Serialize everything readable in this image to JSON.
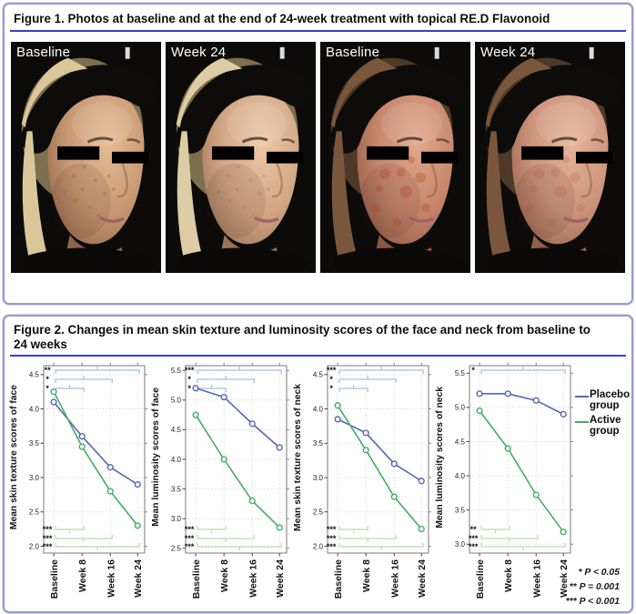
{
  "figure1": {
    "title": "Figure 1. Photos at baseline and at the end of 24-week treatment with topical RE.D Flavonoid",
    "photos": [
      {
        "label": "Baseline",
        "patient": "1",
        "skin_light": "#e6bd97",
        "skin_mid": "#c89873",
        "skin_shadow": "#8f6548",
        "hair": "#d9c79a",
        "hair_dark": "#7d6e4e",
        "blotch": "freckle"
      },
      {
        "label": "Week 24",
        "patient": "1",
        "skin_light": "#edc9a8",
        "skin_mid": "#d2a685",
        "skin_shadow": "#9a7356",
        "hair": "#ddcda4",
        "hair_dark": "#7d6e4e",
        "blotch": "freckle-light"
      },
      {
        "label": "Baseline",
        "patient": "2",
        "skin_light": "#e2a98c",
        "skin_mid": "#c5856b",
        "skin_shadow": "#8d5743",
        "hair": "#7a573c",
        "hair_dark": "#4e3827",
        "blotch": "red"
      },
      {
        "label": "Week 24",
        "patient": "2",
        "skin_light": "#e7b599",
        "skin_mid": "#cc947b",
        "skin_shadow": "#935f4b",
        "hair": "#7a573c",
        "hair_dark": "#4e3827",
        "blotch": "red-light"
      }
    ]
  },
  "figure2": {
    "title": "Figure 2. Changes in mean skin texture and luminosity scores of the face and neck from baseline to 24 weeks",
    "underline_color": "#3b3bd6",
    "legend": {
      "items": [
        {
          "label": "Placebo group",
          "color": "#5568b0"
        },
        {
          "label": "Active group",
          "color": "#44ad63"
        }
      ]
    },
    "pvalue_notes": [
      "* P < 0.05",
      "** P = 0.001",
      "*** P < 0.001"
    ],
    "sig_colors": {
      "top_bracket": "#a2c0de",
      "bottom_bracket": "#b7dfa9"
    }
  },
  "chart_data": [
    {
      "type": "line",
      "title": "",
      "xlabel": "",
      "ylabel": "Mean skin texture scores of face",
      "categories": [
        "Baseline",
        "Week 8",
        "Week 16",
        "Week 24"
      ],
      "yticks": [
        2.0,
        2.5,
        3.0,
        3.5,
        4.0,
        4.5
      ],
      "ylim": [
        1.9,
        4.63
      ],
      "grid": true,
      "legend_position": "right-of-last-chart",
      "series": [
        {
          "name": "Placebo group",
          "color": "#5568b0",
          "values": [
            4.1,
            3.6,
            3.15,
            2.9
          ]
        },
        {
          "name": "Active group",
          "color": "#44ad63",
          "values": [
            4.25,
            3.45,
            2.8,
            2.3
          ]
        }
      ],
      "sig_top": [
        {
          "from": 0,
          "to": 3,
          "label": "**"
        },
        {
          "from": 0,
          "to": 2,
          "label": "*"
        },
        {
          "from": 0,
          "to": 1,
          "label": "*"
        }
      ],
      "sig_bottom": [
        {
          "from": 0,
          "to": 1,
          "label": "***"
        },
        {
          "from": 0,
          "to": 2,
          "label": "***"
        },
        {
          "from": 0,
          "to": 3,
          "label": "***"
        }
      ]
    },
    {
      "type": "line",
      "title": "",
      "xlabel": "",
      "ylabel": "Mean luminosity scores of face",
      "categories": [
        "Baseline",
        "Week 8",
        "Week 16",
        "Week 24"
      ],
      "yticks": [
        2.5,
        3.0,
        3.5,
        4.0,
        4.5,
        5.0,
        5.5
      ],
      "ylim": [
        2.42,
        5.58
      ],
      "grid": true,
      "series": [
        {
          "name": "Placebo group",
          "color": "#5568b0",
          "values": [
            5.2,
            5.05,
            4.6,
            4.2
          ]
        },
        {
          "name": "Active group",
          "color": "#44ad63",
          "values": [
            4.75,
            4.0,
            3.3,
            2.85
          ]
        }
      ],
      "sig_top": [
        {
          "from": 0,
          "to": 3,
          "label": "***"
        },
        {
          "from": 0,
          "to": 2,
          "label": "*"
        },
        {
          "from": 0,
          "to": 1,
          "label": "*"
        }
      ],
      "sig_bottom": [
        {
          "from": 0,
          "to": 1,
          "label": "***"
        },
        {
          "from": 0,
          "to": 2,
          "label": "***"
        },
        {
          "from": 0,
          "to": 3,
          "label": "***"
        }
      ]
    },
    {
      "type": "line",
      "title": "",
      "xlabel": "",
      "ylabel": "Mean skin texture scores of neck",
      "categories": [
        "Baseline",
        "Week 8",
        "Week 16",
        "Week 24"
      ],
      "yticks": [
        2.0,
        2.5,
        3.0,
        3.5,
        4.0,
        4.5
      ],
      "ylim": [
        1.9,
        4.63
      ],
      "grid": true,
      "series": [
        {
          "name": "Placebo group",
          "color": "#5568b0",
          "values": [
            3.85,
            3.65,
            3.2,
            2.95
          ]
        },
        {
          "name": "Active group",
          "color": "#44ad63",
          "values": [
            4.05,
            3.4,
            2.72,
            2.25
          ]
        }
      ],
      "sig_top": [
        {
          "from": 0,
          "to": 3,
          "label": "***"
        },
        {
          "from": 0,
          "to": 2,
          "label": "*"
        },
        {
          "from": 0,
          "to": 1,
          "label": "*"
        }
      ],
      "sig_bottom": [
        {
          "from": 0,
          "to": 1,
          "label": "***"
        },
        {
          "from": 0,
          "to": 2,
          "label": "***"
        },
        {
          "from": 0,
          "to": 3,
          "label": "***"
        }
      ]
    },
    {
      "type": "line",
      "title": "",
      "xlabel": "",
      "ylabel": "Mean luminosity scores of neck",
      "categories": [
        "Baseline",
        "Week 8",
        "Week 16",
        "Week 24"
      ],
      "yticks": [
        3.0,
        3.5,
        4.0,
        4.5,
        5.0,
        5.5
      ],
      "ylim": [
        2.87,
        5.61
      ],
      "grid": true,
      "series": [
        {
          "name": "Placebo group",
          "color": "#5568b0",
          "values": [
            5.2,
            5.2,
            5.1,
            4.9
          ]
        },
        {
          "name": "Active group",
          "color": "#44ad63",
          "values": [
            4.95,
            4.4,
            3.72,
            3.18
          ]
        }
      ],
      "sig_top": [
        {
          "from": 0,
          "to": 3,
          "label": "*"
        }
      ],
      "sig_bottom": [
        {
          "from": 0,
          "to": 1,
          "label": "**"
        },
        {
          "from": 0,
          "to": 2,
          "label": "***"
        },
        {
          "from": 0,
          "to": 3,
          "label": "***"
        }
      ]
    }
  ]
}
